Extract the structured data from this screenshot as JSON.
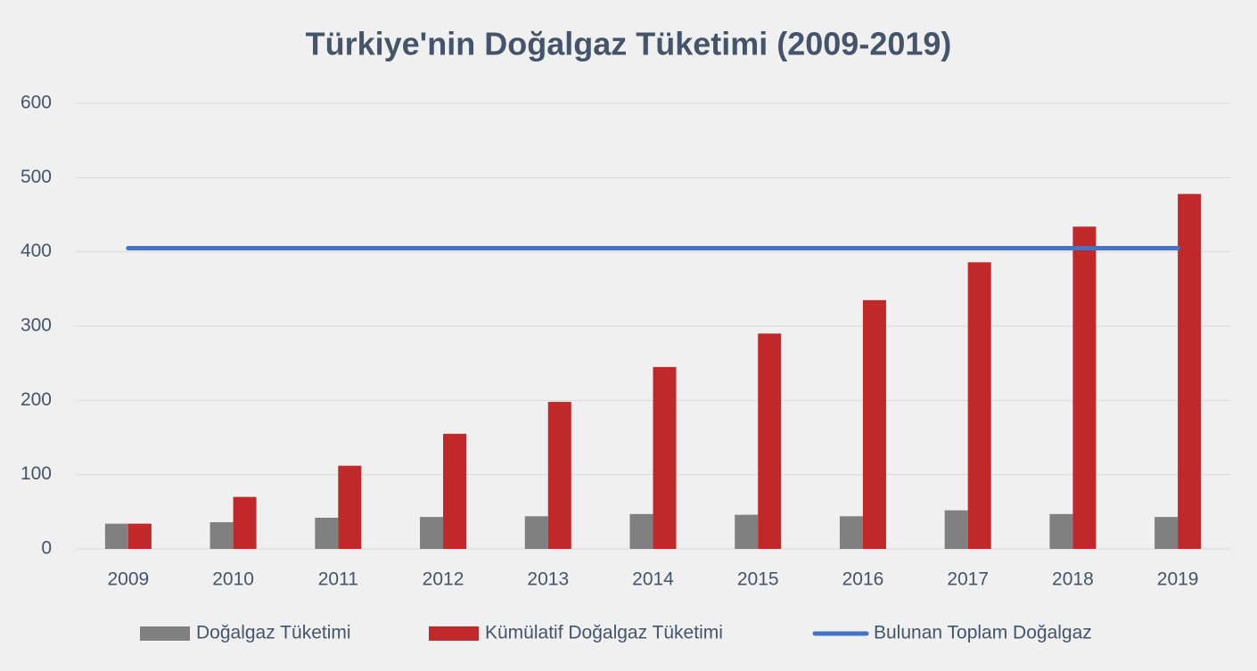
{
  "chart_data": {
    "type": "bar",
    "title": "Türkiye'nin Doğalgaz Tüketimi (2009-2019)",
    "categories": [
      "2009",
      "2010",
      "2011",
      "2012",
      "2013",
      "2014",
      "2015",
      "2016",
      "2017",
      "2018",
      "2019"
    ],
    "series": [
      {
        "name": "Doğalgaz Tüketimi",
        "color": "#808080",
        "values": [
          34,
          36,
          42,
          43,
          44,
          47,
          46,
          44,
          52,
          47,
          43
        ]
      },
      {
        "name": "Kümülatif Doğalgaz Tüketimi",
        "color": "#c0282a",
        "values": [
          34,
          70,
          112,
          155,
          198,
          245,
          290,
          335,
          386,
          434,
          478
        ]
      },
      {
        "name": "Bulunan Toplam Doğalgaz",
        "color": "#4472c4",
        "type": "line",
        "values": [
          405,
          405,
          405,
          405,
          405,
          405,
          405,
          405,
          405,
          405,
          405
        ]
      }
    ],
    "ylim": [
      0,
      600
    ],
    "yticks": [
      0,
      100,
      200,
      300,
      400,
      500,
      600
    ],
    "grid": true,
    "legend": "bottom"
  }
}
